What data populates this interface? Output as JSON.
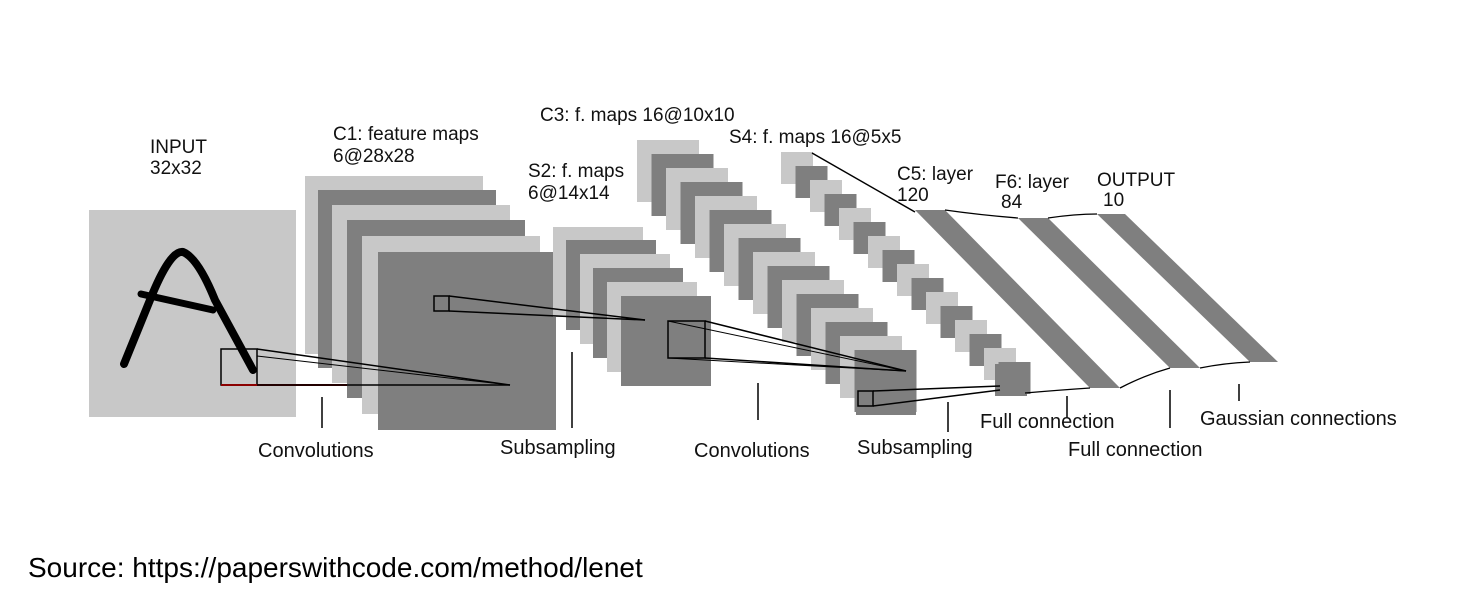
{
  "layers": {
    "input": {
      "name": "INPUT",
      "size": "32x32"
    },
    "c1": {
      "name": "C1: feature maps",
      "size": "6@28x28"
    },
    "s2": {
      "name": "S2: f. maps",
      "size": "6@14x14"
    },
    "c3": {
      "name": "C3: f. maps 16@10x10"
    },
    "s4": {
      "name": "S4: f. maps 16@5x5"
    },
    "c5": {
      "name": "C5: layer",
      "size": "120"
    },
    "f6": {
      "name": "F6: layer",
      "size": "84"
    },
    "output": {
      "name": "OUTPUT",
      "size": "10"
    }
  },
  "operations": {
    "conv1": "Convolutions",
    "sub1": "Subsampling",
    "conv2": "Convolutions",
    "sub2": "Subsampling",
    "full1": "Full connection",
    "full2": "Full connection",
    "gauss": "Gaussian connections"
  },
  "source": "Source: https://paperswithcode.com/method/lenet",
  "colors": {
    "light": "#c8c8c8",
    "dark": "#7f7f7f",
    "line": "#000000",
    "receptive": "#8b0000"
  }
}
